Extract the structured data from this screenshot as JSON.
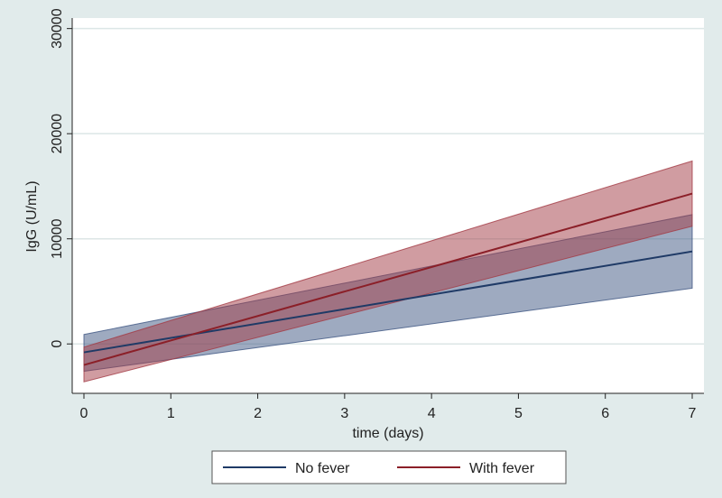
{
  "chart_data": {
    "type": "line",
    "xlabel": "time (days)",
    "ylabel": "IgG (U/mL)",
    "xlim": [
      0,
      7
    ],
    "ylim": [
      -4700,
      31000
    ],
    "x_ticks": [
      0,
      1,
      2,
      3,
      4,
      5,
      6,
      7
    ],
    "y_ticks": [
      0,
      10000,
      20000,
      30000
    ],
    "grid": "horizontal",
    "legend_position": "bottom",
    "series": [
      {
        "name": "No fever",
        "color": "#1f3a66",
        "band_color": "#3d5582",
        "x": [
          0,
          7
        ],
        "y": [
          -800,
          8800
        ],
        "ci_lower": [
          -2600,
          5300
        ],
        "ci_upper": [
          900,
          12300
        ]
      },
      {
        "name": "With fever",
        "color": "#8b1f28",
        "band_color": "#a23a44",
        "x": [
          0,
          7
        ],
        "y": [
          -2000,
          14300
        ],
        "ci_lower": [
          -3600,
          11200
        ],
        "ci_upper": [
          -300,
          17400
        ]
      }
    ]
  }
}
